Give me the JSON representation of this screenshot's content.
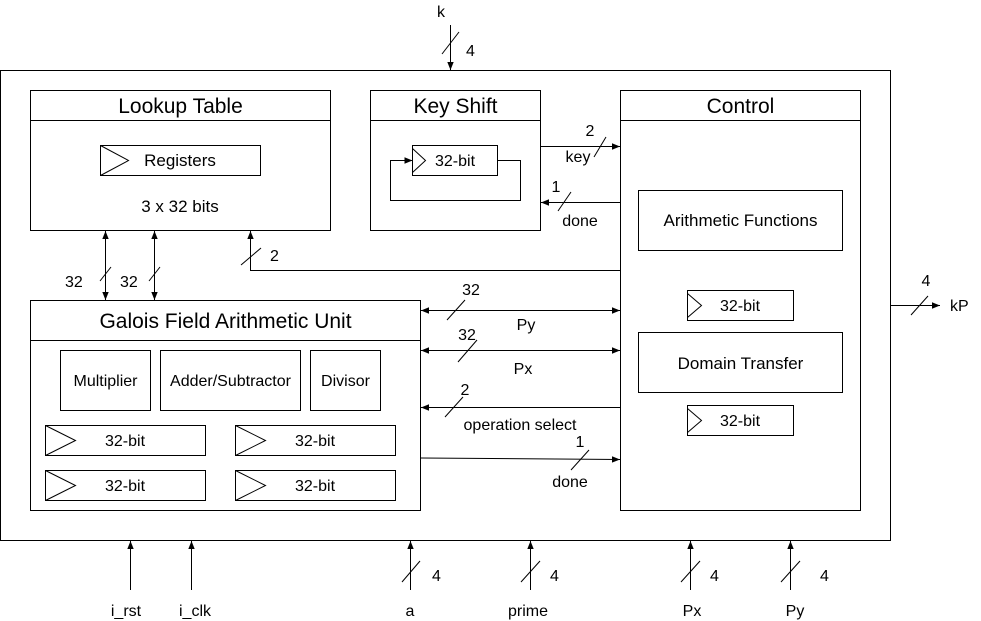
{
  "blocks": {
    "lookup_table": {
      "title": "Lookup Table",
      "register": "Registers",
      "size": "3 x 32 bits"
    },
    "key_shift": {
      "title": "Key Shift",
      "register": "32-bit"
    },
    "control": {
      "title": "Control",
      "arith_functions": "Arithmetic Functions",
      "register_top": "32-bit",
      "domain_transfer": "Domain Transfer",
      "register_bottom": "32-bit"
    },
    "gfau": {
      "title": "Galois Field Arithmetic Unit",
      "multiplier": "Multiplier",
      "adder": "Adder/Subtractor",
      "divisor": "Divisor",
      "registers": [
        "32-bit",
        "32-bit",
        "32-bit",
        "32-bit"
      ]
    }
  },
  "signals": {
    "k": {
      "name": "k",
      "width": "4"
    },
    "key": {
      "name": "key",
      "width": "2"
    },
    "done_ks": {
      "name": "done",
      "width": "1"
    },
    "lut_ctrl": {
      "width": "2"
    },
    "lut_gf_left": {
      "width": "32"
    },
    "lut_gf_right": {
      "width": "32"
    },
    "py": {
      "name": "Py",
      "width": "32"
    },
    "px": {
      "name": "Px",
      "width": "32"
    },
    "op_select": {
      "name": "operation select",
      "width": "2"
    },
    "done_gf": {
      "name": "done",
      "width": "1"
    },
    "kp": {
      "name": "kP",
      "width": "4"
    },
    "inputs": [
      {
        "name": "i_rst"
      },
      {
        "name": "i_clk"
      },
      {
        "name": "a",
        "width": "4"
      },
      {
        "name": "prime",
        "width": "4"
      },
      {
        "name": "Px",
        "width": "4"
      },
      {
        "name": "Py",
        "width": "4"
      }
    ]
  }
}
